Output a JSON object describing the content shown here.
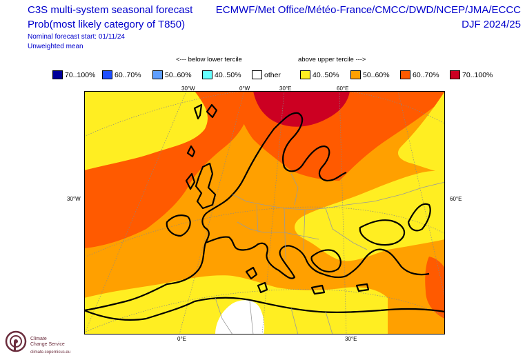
{
  "header": {
    "title": "C3S multi-system seasonal forecast",
    "subtitle": "Prob(most likely category of T850)",
    "forecast_start": "Nominal forecast start: 01/11/24",
    "weighting": "Unweighted mean",
    "centres": "ECMWF/Met Office/Météo-France/CMCC/DWD/NCEP/JMA/ECCC",
    "season": "DJF 2024/25"
  },
  "legend": {
    "below_caption": "<--- below lower tercile",
    "above_caption": "above upper tercile --->",
    "items": [
      {
        "label": "70..100%",
        "color": "#000099"
      },
      {
        "label": "60..70%",
        "color": "#1f4fff"
      },
      {
        "label": "50..60%",
        "color": "#5f9fff"
      },
      {
        "label": "40..50%",
        "color": "#66ffff"
      },
      {
        "label": "other",
        "color": "#ffffff"
      },
      {
        "label": "40..50%",
        "color": "#ffee22"
      },
      {
        "label": "50..60%",
        "color": "#ffa000"
      },
      {
        "label": "60..70%",
        "color": "#ff5a00"
      },
      {
        "label": "70..100%",
        "color": "#cc0022"
      }
    ]
  },
  "map": {
    "lon_labels_top": [
      "30°W",
      "0°W",
      "30°E",
      "60°E"
    ],
    "lat_label_left": "30°W",
    "lat_label_right": "60°E",
    "lon_labels_bottom": [
      "0°E",
      "30°E"
    ]
  },
  "logo": {
    "name_line1": "Climate",
    "name_line2": "Change Service",
    "url": "climate.copernicus.eu",
    "color": "#6b2d3d"
  }
}
